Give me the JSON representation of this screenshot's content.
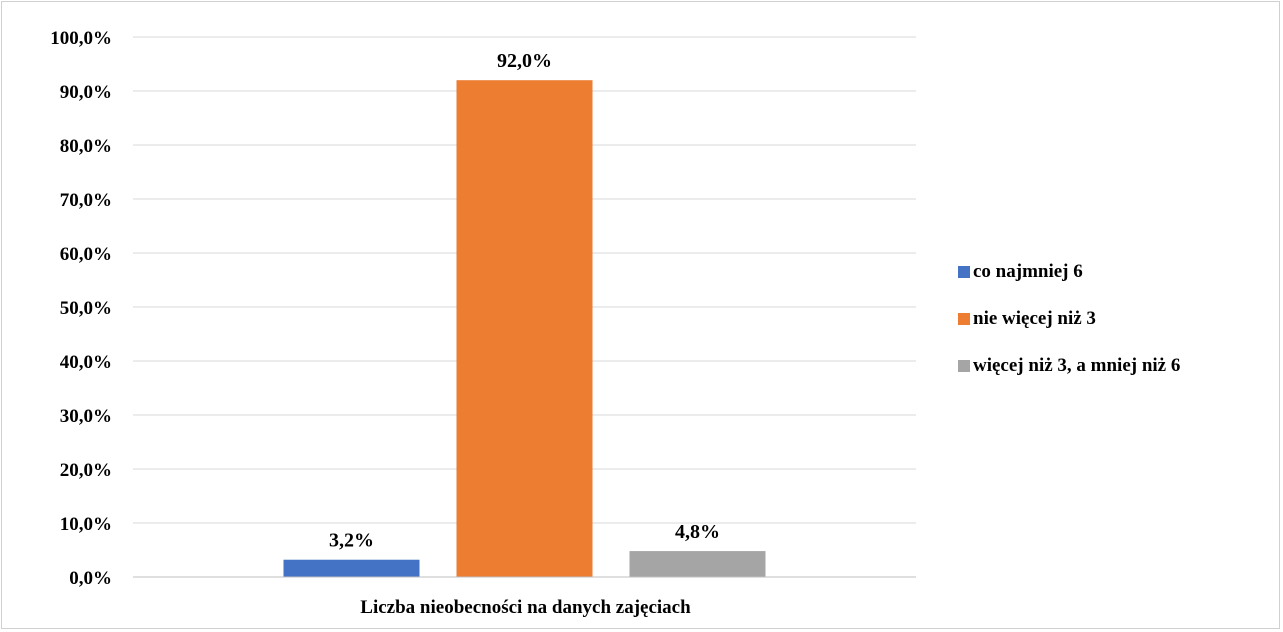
{
  "chart_data": {
    "type": "bar",
    "categories": [
      "Liczba nieobecności na danych zajęciach"
    ],
    "series": [
      {
        "name": "co najmniej 6",
        "values": [
          3.2
        ],
        "color": "#4472C4",
        "label": "3,2%"
      },
      {
        "name": "nie więcej niż 3",
        "values": [
          92.0
        ],
        "color": "#ED7D31",
        "label": "92,0%"
      },
      {
        "name": "więcej niż 3, a mniej niż 6",
        "values": [
          4.8
        ],
        "color": "#A5A5A5",
        "label": "4,8%"
      }
    ],
    "ylim": [
      0,
      100
    ],
    "yticks": [
      0,
      10,
      20,
      30,
      40,
      50,
      60,
      70,
      80,
      90,
      100
    ],
    "ytick_labels": [
      "0,0%",
      "10,0%",
      "20,0%",
      "30,0%",
      "40,0%",
      "50,0%",
      "60,0%",
      "70,0%",
      "80,0%",
      "90,0%",
      "100,0%"
    ],
    "title": "",
    "xlabel": "",
    "ylabel": "",
    "grid": true,
    "legend_position": "right",
    "gridline_color": "#d9d9d9",
    "axis_color": "#bfbfbf"
  }
}
